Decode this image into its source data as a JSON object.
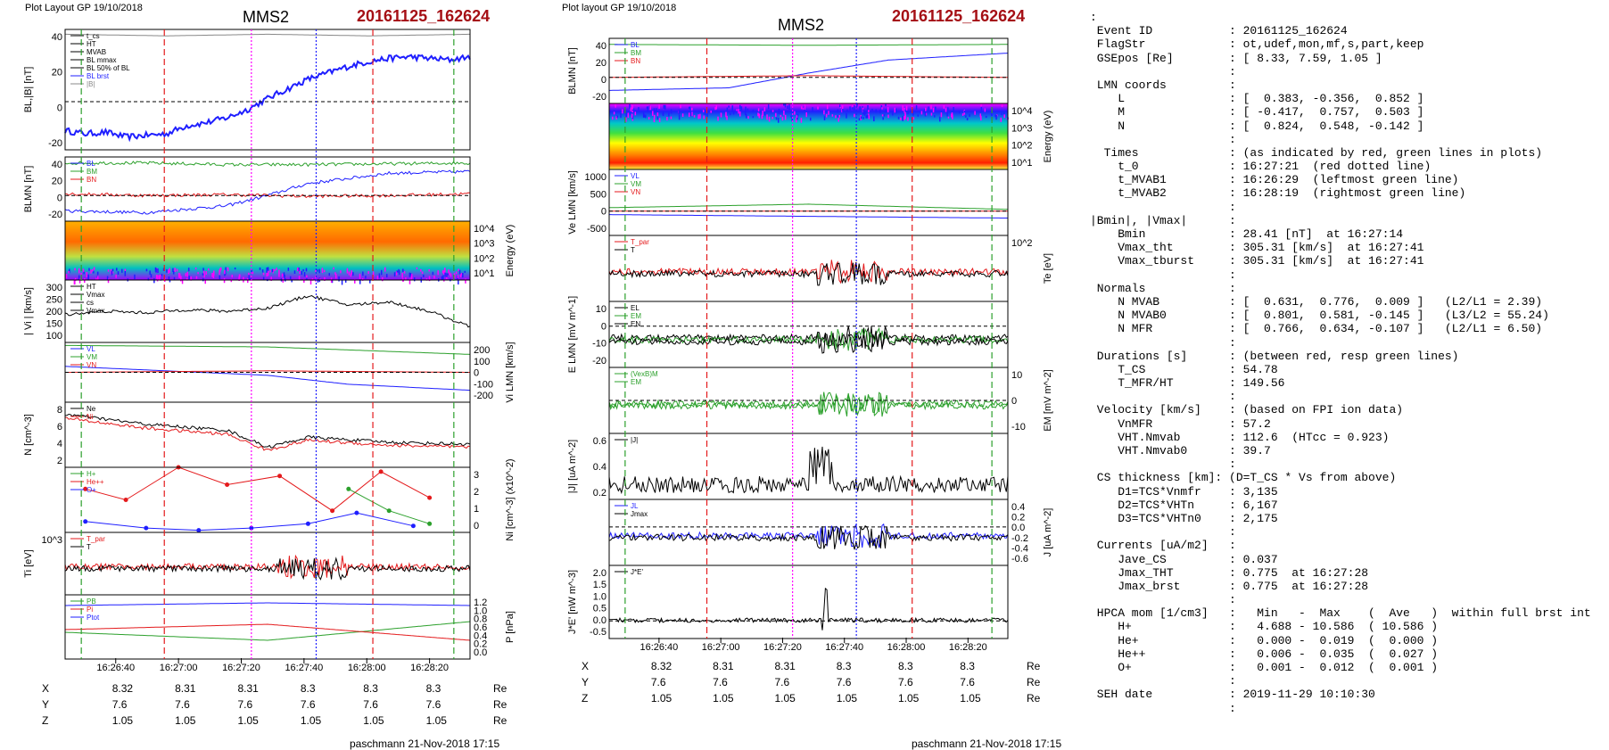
{
  "header": {
    "left_title": "Plot Layout GP 19/10/2018",
    "mid_title": "Plot layout GP 19/10/2018",
    "spacecraft": "MMS2",
    "event": "20161125_162624",
    "footer": "paschmann 21-Nov-2018 17:15"
  },
  "colors": {
    "event": "#a50f15",
    "red": "#e41a1c",
    "green": "#2ca02c",
    "blue": "#1f1fff",
    "magenta": "#ff00ff"
  },
  "time_ticks": [
    "16:26:40",
    "16:27:00",
    "16:27:20",
    "16:27:40",
    "16:28:00",
    "16:28:20"
  ],
  "position_table": {
    "labels": [
      "X",
      "Y",
      "Z"
    ],
    "unit": "Re",
    "left": {
      "X": [
        "8.32",
        "8.31",
        "8.31",
        "8.3",
        "8.3",
        "8.3"
      ],
      "Y": [
        "7.6",
        "7.6",
        "7.6",
        "7.6",
        "7.6",
        "7.6"
      ],
      "Z": [
        "1.05",
        "1.05",
        "1.05",
        "1.05",
        "1.05",
        "1.05"
      ]
    },
    "mid": {
      "X": [
        "8.32",
        "8.31",
        "8.31",
        "8.3",
        "8.3",
        "8.3"
      ],
      "Y": [
        "7.6",
        "7.6",
        "7.6",
        "7.6",
        "7.6",
        "7.6"
      ],
      "Z": [
        "1.05",
        "1.05",
        "1.05",
        "1.05",
        "1.05",
        "1.05"
      ]
    }
  },
  "chart_data": [
    {
      "type": "line",
      "panel": "BL |B|",
      "ylabel": "BL,|B| [nT]",
      "yticks": [
        "40",
        "20",
        "0",
        "-20"
      ],
      "ylim": [
        -30,
        45
      ],
      "legend": [
        "t_cs",
        "HT",
        "MVAB",
        "BL mmax",
        "BL 50% of BL",
        "BL brst",
        "|B|"
      ],
      "series": [
        {
          "name": "BL brst",
          "x": [
            0,
            0.05,
            0.1,
            0.15,
            0.2,
            0.25,
            0.3,
            0.35,
            0.4,
            0.45,
            0.5,
            0.55,
            0.6,
            0.65,
            0.7,
            0.75,
            0.8,
            0.85,
            0.9,
            0.95,
            1.0
          ],
          "values": [
            -18,
            -20,
            -19,
            -22,
            -21,
            -20,
            -15,
            -13,
            -10,
            -5,
            2,
            8,
            14,
            18,
            22,
            25,
            27,
            28,
            27,
            26,
            28
          ]
        },
        {
          "name": "|B|",
          "x": [
            0,
            0.25,
            0.5,
            0.75,
            1.0
          ],
          "values": [
            42,
            41,
            42,
            41,
            42
          ]
        }
      ]
    },
    {
      "type": "line",
      "panel": "BLMN",
      "ylabel": "BLMN [nT]",
      "yticks": [
        "40",
        "20",
        "0",
        "-20"
      ],
      "ylim": [
        -30,
        45
      ],
      "legend": [
        "BL",
        "BM",
        "BN"
      ],
      "series": [
        {
          "name": "BL",
          "x": [
            0,
            0.2,
            0.4,
            0.5,
            0.6,
            0.8,
            1.0
          ],
          "values": [
            -18,
            -20,
            -12,
            0,
            14,
            26,
            28
          ]
        },
        {
          "name": "BM",
          "x": [
            0,
            0.2,
            0.4,
            0.6,
            0.8,
            1.0
          ],
          "values": [
            38,
            38,
            36,
            36,
            37,
            38
          ]
        },
        {
          "name": "BN",
          "x": [
            0,
            0.2,
            0.4,
            0.6,
            0.8,
            1.0
          ],
          "values": [
            2,
            0,
            1,
            -1,
            0,
            2
          ]
        }
      ]
    },
    {
      "type": "heatmap",
      "panel": "ion energy spectrogram",
      "ylabel": "Energy (eV)",
      "yticks": [
        "10^4",
        "10^3",
        "10^2",
        "10^1"
      ]
    },
    {
      "type": "line",
      "panel": "|Vi|",
      "ylabel": "| Vi | [km/s]",
      "yticks": [
        "300",
        "250",
        "200",
        "150",
        "100"
      ],
      "ylim": [
        100,
        300
      ],
      "legend": [
        "HT",
        "Vmax",
        "cs",
        "Vmax"
      ],
      "series": [
        {
          "name": "|Vi|",
          "x": [
            0,
            0.1,
            0.2,
            0.3,
            0.4,
            0.5,
            0.6,
            0.7,
            0.8,
            0.9,
            1.0
          ],
          "values": [
            190,
            200,
            195,
            205,
            200,
            210,
            250,
            220,
            230,
            200,
            150
          ]
        }
      ]
    },
    {
      "type": "line",
      "panel": "Vi LMN",
      "ylabel": "Vi LMN [km/s]",
      "yticks": [
        "200",
        "100",
        "0",
        "-100",
        "-200"
      ],
      "ylim": [
        -200,
        200
      ],
      "legend": [
        "VL",
        "VM",
        "VN"
      ],
      "series": [
        {
          "name": "VL",
          "x": [
            0,
            0.5,
            0.7,
            1.0
          ],
          "values": [
            40,
            -20,
            -80,
            -120
          ]
        },
        {
          "name": "VM",
          "x": [
            0,
            0.5,
            1.0
          ],
          "values": [
            180,
            170,
            120
          ]
        },
        {
          "name": "VN",
          "x": [
            0,
            0.5,
            1.0
          ],
          "values": [
            0,
            10,
            0
          ]
        }
      ]
    },
    {
      "type": "line",
      "panel": "N",
      "ylabel": "N [cm^-3]",
      "yticks": [
        "8",
        "6",
        "4",
        "2"
      ],
      "ylim": [
        1.5,
        8
      ],
      "legend": [
        "Ne",
        "Ni"
      ],
      "series": [
        {
          "name": "Ne",
          "x": [
            0,
            0.2,
            0.4,
            0.5,
            0.6,
            0.8,
            1.0
          ],
          "values": [
            6.8,
            5.8,
            5.2,
            3.5,
            4.5,
            4.0,
            3.8
          ]
        },
        {
          "name": "Ni",
          "x": [
            0,
            0.2,
            0.4,
            0.5,
            0.6,
            0.8,
            1.0
          ],
          "values": [
            6.4,
            5.4,
            4.8,
            3.2,
            4.2,
            3.7,
            3.5
          ]
        }
      ]
    },
    {
      "type": "line",
      "panel": "Ni species",
      "ylabel": "Ni [cm^-3] (x10^-2)",
      "yticks": [
        "3",
        "2",
        "1",
        "0"
      ],
      "ylim": [
        0,
        3
      ],
      "legend": [
        "H+",
        "He++",
        "O+"
      ],
      "series": [
        {
          "name": "He++",
          "x": [
            0.05,
            0.15,
            0.28,
            0.4,
            0.53,
            0.66,
            0.78,
            0.9
          ],
          "values": [
            2.0,
            1.5,
            3.0,
            2.2,
            2.6,
            1.0,
            2.8,
            1.6
          ]
        },
        {
          "name": "O+",
          "x": [
            0.05,
            0.2,
            0.33,
            0.46,
            0.6,
            0.72,
            0.86
          ],
          "values": [
            0.5,
            0.2,
            0.1,
            0.2,
            0.4,
            0.9,
            0.3
          ]
        },
        {
          "name": "H+",
          "x": [
            0.7,
            0.8,
            0.9
          ],
          "values": [
            2.0,
            1.0,
            0.4
          ]
        }
      ]
    },
    {
      "type": "line",
      "panel": "Ti",
      "ylabel": "Ti [eV]",
      "yticks": [
        "10^3"
      ],
      "legend": [
        "T_par",
        "T"
      ],
      "series": [
        {
          "name": "T_par",
          "x": [
            0,
            0.2,
            0.4,
            0.5,
            0.6,
            0.8,
            1.0
          ],
          "values": [
            250,
            350,
            500,
            700,
            600,
            850,
            800
          ]
        },
        {
          "name": "T",
          "x": [
            0,
            0.2,
            0.4,
            0.5,
            0.6,
            0.8,
            1.0
          ],
          "values": [
            750,
            750,
            780,
            850,
            820,
            870,
            860
          ]
        }
      ]
    },
    {
      "type": "line",
      "panel": "P",
      "ylabel": "P [nPa]",
      "yticks": [
        "1.2",
        "1.0",
        "0.8",
        "0.6",
        "0.4",
        "0.2",
        "0.0"
      ],
      "ylim": [
        0,
        1.2
      ],
      "legend": [
        "PB",
        "Pi",
        "Ptot"
      ],
      "series": [
        {
          "name": "Ptot",
          "x": [
            0,
            0.5,
            1.0
          ],
          "values": [
            1.0,
            1.05,
            1.0
          ]
        },
        {
          "name": "PB",
          "x": [
            0,
            0.5,
            1.0
          ],
          "values": [
            0.5,
            0.35,
            0.7
          ]
        },
        {
          "name": "Pi",
          "x": [
            0,
            0.5,
            1.0
          ],
          "values": [
            0.55,
            0.65,
            0.35
          ]
        }
      ]
    },
    {
      "type": "line",
      "panel": "BLMN (mid)",
      "ylabel": "BLMN [nT]",
      "yticks": [
        "40",
        "20",
        "0",
        "-20"
      ],
      "ylim": [
        -30,
        45
      ],
      "legend": [
        "BL",
        "BM",
        "BN"
      ],
      "series": [
        {
          "name": "BL",
          "x": [
            0,
            0.3,
            0.5,
            0.7,
            1.0
          ],
          "values": [
            -15,
            -12,
            5,
            20,
            28
          ]
        },
        {
          "name": "BM",
          "x": [
            0,
            0.5,
            1.0
          ],
          "values": [
            38,
            37,
            38
          ]
        },
        {
          "name": "BN",
          "x": [
            0,
            0.5,
            1.0
          ],
          "values": [
            0,
            2,
            0
          ]
        }
      ]
    },
    {
      "type": "heatmap",
      "panel": "electron energy spectrogram",
      "ylabel": "Energy (eV)",
      "yticks": [
        "10^4",
        "10^3",
        "10^2",
        "10^1"
      ]
    },
    {
      "type": "line",
      "panel": "Ve LMN",
      "ylabel": "Ve LMN [km/s]",
      "yticks": [
        "1000",
        "500",
        "0",
        "-500"
      ],
      "ylim": [
        -700,
        1200
      ],
      "legend": [
        "VL",
        "VM",
        "VN"
      ],
      "series": [
        {
          "name": "VM",
          "x": [
            0,
            0.5,
            1.0
          ],
          "values": [
            100,
            200,
            50
          ]
        },
        {
          "name": "VN",
          "x": [
            0,
            0.5,
            1.0
          ],
          "values": [
            0,
            0,
            0
          ]
        },
        {
          "name": "VL",
          "x": [
            0,
            0.5,
            1.0
          ],
          "values": [
            -100,
            -150,
            -200
          ]
        }
      ]
    },
    {
      "type": "line",
      "panel": "Te",
      "ylabel": "Te [eV]",
      "yticks": [
        "10^2"
      ],
      "legend": [
        "T_par",
        "T"
      ],
      "series": [
        {
          "name": "T_par",
          "x": [
            0,
            0.2,
            0.4,
            0.6,
            0.8,
            1.0
          ],
          "values": [
            40,
            50,
            70,
            80,
            90,
            100
          ]
        },
        {
          "name": "T",
          "x": [
            0,
            0.2,
            0.4,
            0.6,
            0.8,
            1.0
          ],
          "values": [
            25,
            30,
            28,
            35,
            40,
            38
          ]
        }
      ]
    },
    {
      "type": "line",
      "panel": "E LMN",
      "ylabel": "E LMN [mV m^-1]",
      "yticks": [
        "10",
        "0",
        "-10",
        "-20"
      ],
      "ylim": [
        -25,
        15
      ],
      "legend": [
        "EL",
        "EM",
        "EN"
      ]
    },
    {
      "type": "line",
      "panel": "EM",
      "ylabel": "EM [mV m^-2]",
      "yticks": [
        "10",
        "0",
        "-10"
      ],
      "ylim": [
        -15,
        15
      ],
      "legend": [
        "(VexB)M",
        "EM"
      ]
    },
    {
      "type": "line",
      "panel": "|J|",
      "ylabel": "|J| [uA m^-2]",
      "yticks": [
        "0.6",
        "0.4",
        "0.2"
      ],
      "ylim": [
        0,
        0.7
      ],
      "legend": [
        "|J|"
      ]
    },
    {
      "type": "line",
      "panel": "J",
      "ylabel": "J [uA m^-2]",
      "yticks": [
        "0.4",
        "0.2",
        "0.0",
        "-0.2",
        "-0.4",
        "-0.6"
      ],
      "ylim": [
        -0.7,
        0.5
      ],
      "legend": [
        "JL",
        "Jmax"
      ]
    },
    {
      "type": "line",
      "panel": "J*E'",
      "ylabel": "J*E' [nW m^-3]",
      "yticks": [
        "2.0",
        "1.5",
        "1.0",
        "0.5",
        "0.0",
        "-0.5"
      ],
      "ylim": [
        -0.7,
        2.2
      ],
      "legend": [
        "J*E'"
      ]
    }
  ],
  "info_lines": [
    ":",
    " Event ID           : 20161125_162624",
    " FlagStr            : ot,udef,mon,mf,s,part,keep",
    " GSEpos [Re]        : [ 8.33, 7.59, 1.05 ]",
    "                    :",
    " LMN coords         :",
    "    L               : [  0.383, -0.356,  0.852 ]",
    "    M               : [ -0.417,  0.757,  0.503 ]",
    "    N               : [  0.824,  0.548, -0.142 ]",
    "                    :",
    "  Times             : (as indicated by red, green lines in plots)",
    "    t_0             : 16:27:21  (red dotted line)",
    "    t_MVAB1         : 16:26:29  (leftmost green line)",
    "    t_MVAB2         : 16:28:19  (rightmost green line)",
    "                    :",
    "|Bmin|, |Vmax|      :",
    "    Bmin            : 28.41 [nT]  at 16:27:14",
    "    Vmax_tht        : 305.31 [km/s]  at 16:27:41",
    "    Vmax_tburst     : 305.31 [km/s]  at 16:27:41",
    "                    :",
    " Normals            :",
    "    N MVAB          : [  0.631,  0.776,  0.009 ]   (L2/L1 = 2.39)",
    "    N MVAB0         : [  0.801,  0.581, -0.145 ]   (L3/L2 = 55.24)",
    "    N MFR           : [  0.766,  0.634, -0.107 ]   (L2/L1 = 6.50)",
    "                    :",
    " Durations [s]      : (between red, resp green lines)",
    "    T_CS            : 54.78",
    "    T_MFR/HT        : 149.56",
    "                    :",
    " Velocity [km/s]    : (based on FPI ion data)",
    "    VnMFR           : 57.2",
    "    VHT.Nmvab       : 112.6  (HTcc = 0.923)",
    "    VHT.Nmvab0      : 39.7",
    "                    :",
    " CS thickness [km]: (D=T_CS * Vs from above)",
    "    D1=TCS*Vnmfr    : 3,135",
    "    D2=TCS*VHTn     : 6,167",
    "    D3=TCS*VHTn0    : 2,175",
    "                    :",
    " Currents [uA/m2]   :",
    "    Jave_CS         : 0.037",
    "    Jmax_THT        : 0.775  at 16:27:28",
    "    Jmax_brst       : 0.775  at 16:27:28",
    "                    :",
    " HPCA mom [1/cm3]   :   Min   -  Max    (  Ave   )  within full brst int",
    "    H+              :   4.688 - 10.586  ( 10.586 )",
    "    He+             :   0.000 -  0.019  (  0.000 )",
    "    He++            :   0.006 -  0.035  (  0.027 )",
    "    O+              :   0.001 -  0.012  (  0.001 )",
    "                    :",
    " SEH date           : 2019-11-29 10:10:30",
    "                    :"
  ]
}
